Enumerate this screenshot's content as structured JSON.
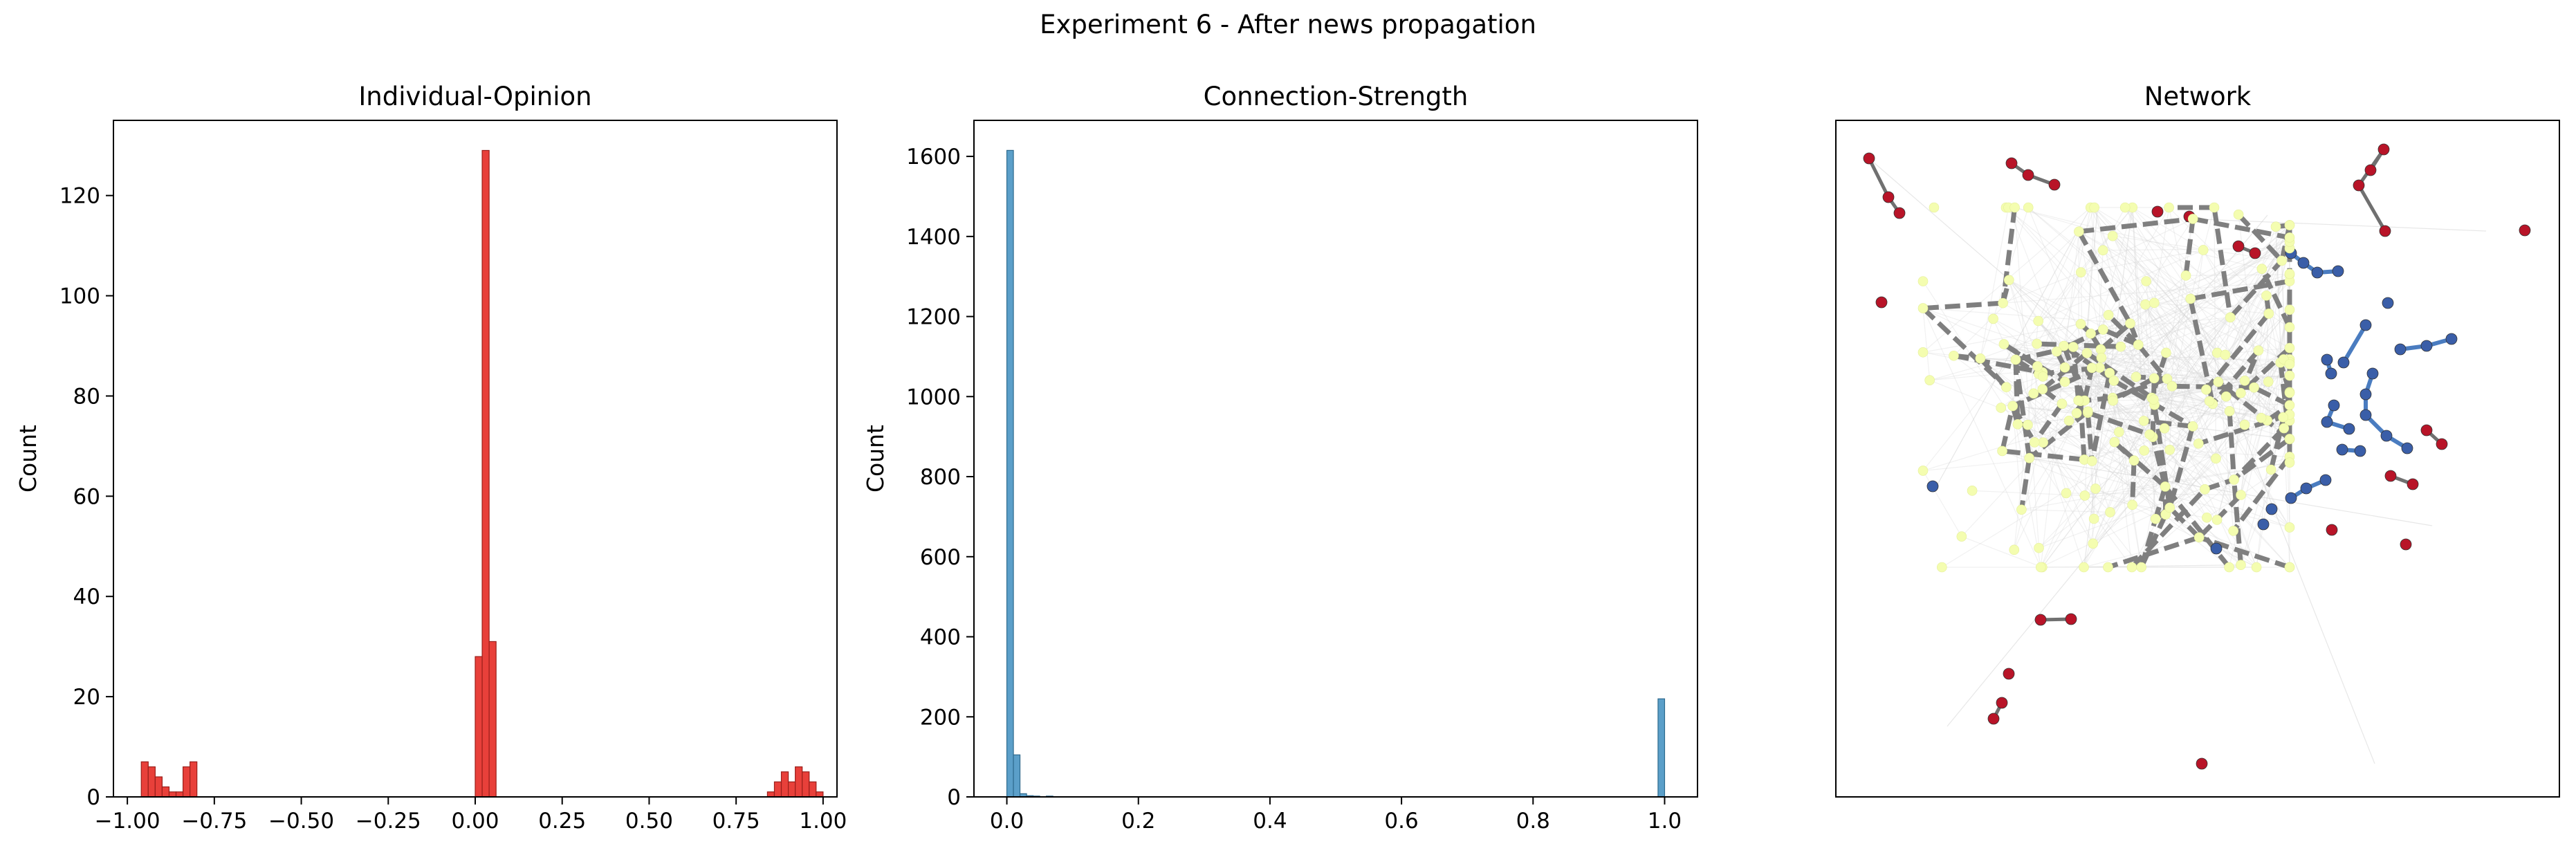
{
  "figure": {
    "suptitle": "Experiment 6 - After news propagation"
  },
  "chart_data": [
    {
      "type": "bar",
      "title": "Individual-Opinion",
      "xlabel": "",
      "ylabel": "Count",
      "xlim": [
        -1.04,
        1.04
      ],
      "ylim": [
        0,
        135
      ],
      "bar_color": "#e8403a",
      "edge_color": "#9a1f1a",
      "xticks": [
        -1.0,
        -0.75,
        -0.5,
        -0.25,
        0.0,
        0.25,
        0.5,
        0.75,
        1.0
      ],
      "xtick_labels": [
        "−1.00",
        "−0.75",
        "−0.50",
        "−0.25",
        "0.00",
        "0.25",
        "0.50",
        "0.75",
        "1.00"
      ],
      "yticks": [
        0,
        20,
        40,
        60,
        80,
        100,
        120
      ],
      "ytick_labels": [
        "0",
        "20",
        "40",
        "60",
        "80",
        "100",
        "120"
      ],
      "bin_width": 0.02,
      "bins": [
        {
          "x0": -0.96,
          "count": 7
        },
        {
          "x0": -0.94,
          "count": 6
        },
        {
          "x0": -0.92,
          "count": 4
        },
        {
          "x0": -0.9,
          "count": 2
        },
        {
          "x0": -0.88,
          "count": 1
        },
        {
          "x0": -0.86,
          "count": 1
        },
        {
          "x0": -0.84,
          "count": 6
        },
        {
          "x0": -0.82,
          "count": 7
        },
        {
          "x0": 0.0,
          "count": 28
        },
        {
          "x0": 0.02,
          "count": 129
        },
        {
          "x0": 0.04,
          "count": 31
        },
        {
          "x0": 0.84,
          "count": 1
        },
        {
          "x0": 0.86,
          "count": 3
        },
        {
          "x0": 0.88,
          "count": 5
        },
        {
          "x0": 0.9,
          "count": 3
        },
        {
          "x0": 0.92,
          "count": 6
        },
        {
          "x0": 0.94,
          "count": 5
        },
        {
          "x0": 0.96,
          "count": 3
        },
        {
          "x0": 0.98,
          "count": 1
        }
      ]
    },
    {
      "type": "bar",
      "title": "Connection-Strength",
      "xlabel": "",
      "ylabel": "Count",
      "xlim": [
        -0.05,
        1.05
      ],
      "ylim": [
        0,
        1690
      ],
      "bar_color": "#5b9fc9",
      "edge_color": "#2e6a8e",
      "xticks": [
        0.0,
        0.2,
        0.4,
        0.6,
        0.8,
        1.0
      ],
      "xtick_labels": [
        "0.0",
        "0.2",
        "0.4",
        "0.6",
        "0.8",
        "1.0"
      ],
      "yticks": [
        0,
        200,
        400,
        600,
        800,
        1000,
        1200,
        1400,
        1600
      ],
      "ytick_labels": [
        "0",
        "200",
        "400",
        "600",
        "800",
        "1000",
        "1200",
        "1400",
        "1600"
      ],
      "bin_width": 0.01,
      "bins": [
        {
          "x0": 0.0,
          "count": 1615
        },
        {
          "x0": 0.01,
          "count": 105
        },
        {
          "x0": 0.02,
          "count": 8
        },
        {
          "x0": 0.03,
          "count": 3
        },
        {
          "x0": 0.04,
          "count": 2
        },
        {
          "x0": 0.06,
          "count": 2
        },
        {
          "x0": 0.99,
          "count": 245
        }
      ]
    },
    {
      "type": "network",
      "title": "Network",
      "node_colors": {
        "neutral": "#f4fdb0",
        "positive": "#b81428",
        "negative": "#3a5ea8"
      },
      "edge_color": "#7f7f7f"
    }
  ]
}
